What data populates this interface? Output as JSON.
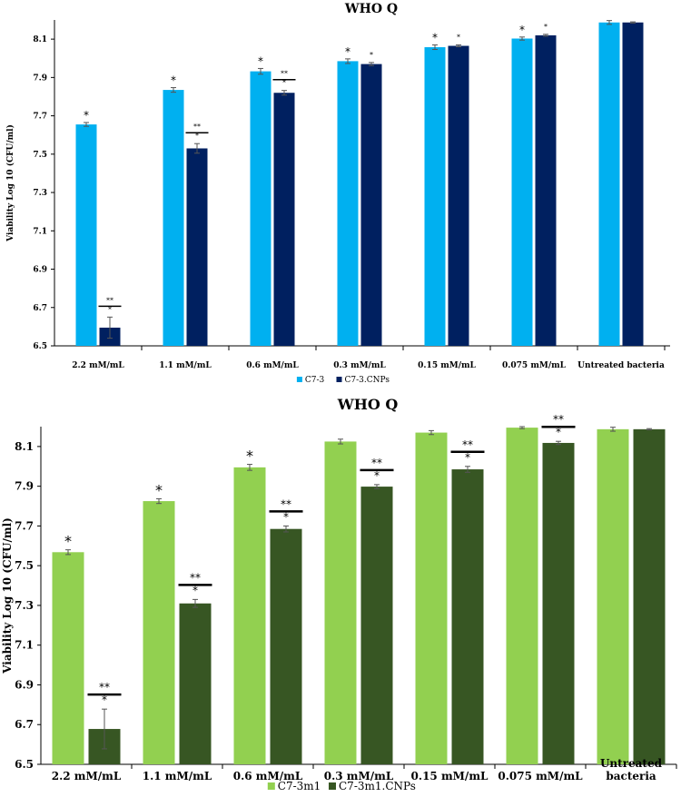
{
  "chart_data": [
    {
      "type": "bar",
      "title": "WHO Q",
      "ylabel": "Viability Log 10 (CFU/ml)",
      "xlabel": "",
      "ylim": [
        6.5,
        8.2
      ],
      "yticks": [
        "6.5",
        "6.7",
        "6.9",
        "7.1",
        "7.3",
        "7.5",
        "7.7",
        "7.9",
        "8.1"
      ],
      "ytick_values": [
        6.5,
        6.7,
        6.9,
        7.1,
        7.3,
        7.5,
        7.7,
        7.9,
        8.1
      ],
      "categories": [
        "2.2 mM/mL",
        "1.1 mM/mL",
        "0.6 mM/mL",
        "0.3 mM/mL",
        "0.15 mM/mL",
        "0.075 mM/mL",
        "Untreated bacteria"
      ],
      "series": [
        {
          "name": "C7-3",
          "color": "#00B0F0",
          "values": [
            7.655,
            7.835,
            7.932,
            7.985,
            8.058,
            8.103,
            8.187
          ],
          "errors": [
            0.01,
            0.012,
            0.015,
            0.012,
            0.012,
            0.008,
            0.01
          ],
          "sig": [
            "*",
            "*",
            "*",
            "*",
            "*",
            "*",
            ""
          ]
        },
        {
          "name": "C7-3.CNPs",
          "color": "#002060",
          "values": [
            6.595,
            7.53,
            7.82,
            7.97,
            8.065,
            8.12,
            8.187
          ],
          "errors": [
            0.055,
            0.025,
            0.012,
            0.008,
            0.005,
            0.005,
            0.003
          ],
          "sig": [
            "*",
            "*",
            "*",
            "*",
            "*",
            "*",
            ""
          ],
          "sig2": [
            "**",
            "**",
            "**",
            "",
            "",
            "",
            ""
          ]
        }
      ]
    },
    {
      "type": "bar",
      "title": "WHO Q",
      "ylabel": "Viability Log 10 (CFU/ml)",
      "xlabel": "",
      "ylim": [
        6.5,
        8.2
      ],
      "yticks": [
        "6.5",
        "6.7",
        "6.9",
        "7.1",
        "7.3",
        "7.5",
        "7.7",
        "7.9",
        "8.1"
      ],
      "ytick_values": [
        6.5,
        6.7,
        6.9,
        7.1,
        7.3,
        7.5,
        7.7,
        7.9,
        8.1
      ],
      "categories": [
        "2.2 mM/mL",
        "1.1 mM/mL",
        "0.6 mM/mL",
        "0.3 mM/mL",
        "0.15 mM/mL",
        "0.075 mM/mL",
        "Untreated bacteria"
      ],
      "series": [
        {
          "name": "C7-3m1",
          "color": "#92D050",
          "values": [
            7.568,
            7.825,
            7.995,
            8.125,
            8.17,
            8.195,
            8.187
          ],
          "errors": [
            0.012,
            0.012,
            0.015,
            0.012,
            0.01,
            0.005,
            0.01
          ],
          "sig": [
            "*",
            "*",
            "*",
            "",
            "",
            "",
            ""
          ]
        },
        {
          "name": "C7-3m1.CNPs",
          "color": "#375623",
          "values": [
            6.678,
            7.31,
            7.685,
            7.898,
            7.985,
            8.118,
            8.187
          ],
          "errors": [
            0.1,
            0.02,
            0.015,
            0.01,
            0.015,
            0.008,
            0.003
          ],
          "sig": [
            "*",
            "*",
            "*",
            "*",
            "*",
            "*",
            ""
          ],
          "sig2": [
            "**",
            "**",
            "**",
            "**",
            "**",
            "**",
            ""
          ]
        }
      ]
    }
  ]
}
